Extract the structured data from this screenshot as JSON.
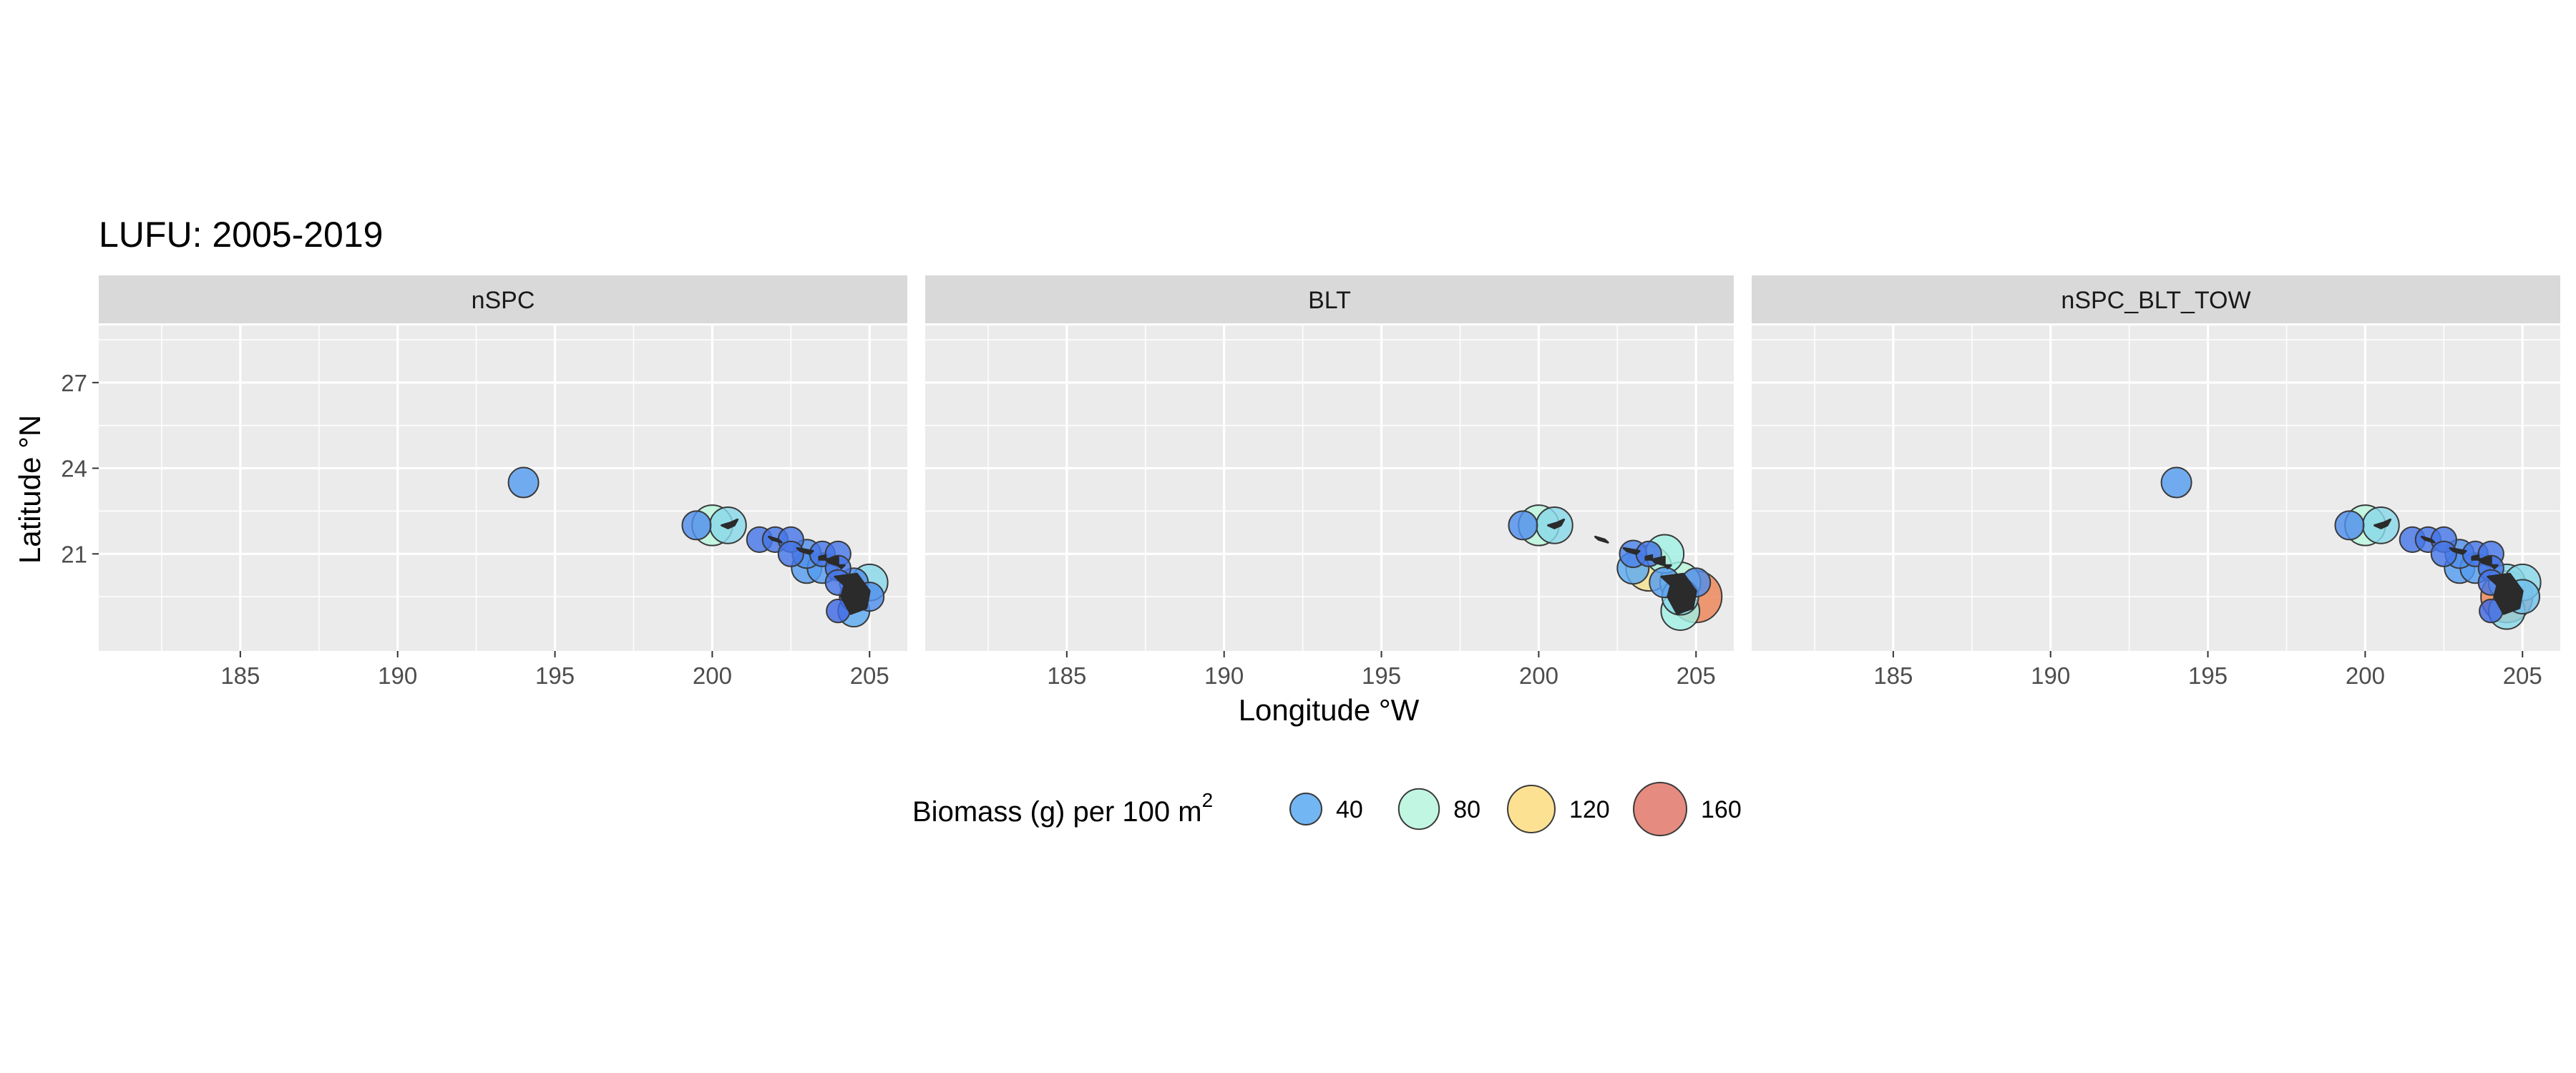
{
  "chart_data": {
    "type": "scatter",
    "title": "LUFU: 2005-2019",
    "xlabel": "Longitude °W",
    "ylabel": "Latitude °N",
    "xlim": [
      180.5,
      206.2
    ],
    "ylim": [
      17.6,
      29.0
    ],
    "x_ticks": [
      185,
      190,
      195,
      200,
      205
    ],
    "x_tick_labels": [
      "185",
      "190",
      "195",
      "200",
      "205"
    ],
    "y_ticks": [
      21,
      24,
      27
    ],
    "y_tick_labels": [
      "21",
      "24",
      "27"
    ],
    "grid": true,
    "legend_position": "bottom",
    "legend": {
      "title_text": "Biomass (g) per 100 m",
      "title_superscript": "2",
      "entries": [
        {
          "label": "40",
          "value": 40,
          "color": "#5aa9f2"
        },
        {
          "label": "80",
          "value": 80,
          "color": "#b6f5dd"
        },
        {
          "label": "120",
          "value": 120,
          "color": "#fbdc80"
        },
        {
          "label": "160",
          "value": 160,
          "color": "#e0776a"
        }
      ]
    },
    "panels": [
      {
        "name": "nSPC",
        "points": [
          {
            "x": 194.0,
            "y": 23.5,
            "biomass": 35
          },
          {
            "x": 199.5,
            "y": 22.0,
            "biomass": 30
          },
          {
            "x": 200.0,
            "y": 22.0,
            "biomass": 80
          },
          {
            "x": 200.5,
            "y": 22.0,
            "biomass": 60
          },
          {
            "x": 201.5,
            "y": 21.5,
            "biomass": 20
          },
          {
            "x": 202.0,
            "y": 21.5,
            "biomass": 20
          },
          {
            "x": 202.5,
            "y": 21.5,
            "biomass": 20
          },
          {
            "x": 202.5,
            "y": 21.0,
            "biomass": 20
          },
          {
            "x": 203.0,
            "y": 21.0,
            "biomass": 30
          },
          {
            "x": 203.5,
            "y": 21.0,
            "biomass": 20
          },
          {
            "x": 204.0,
            "y": 21.0,
            "biomass": 20
          },
          {
            "x": 203.0,
            "y": 20.5,
            "biomass": 35
          },
          {
            "x": 203.5,
            "y": 20.5,
            "biomass": 35
          },
          {
            "x": 204.0,
            "y": 20.5,
            "biomass": 20
          },
          {
            "x": 204.0,
            "y": 20.0,
            "biomass": 20
          },
          {
            "x": 204.5,
            "y": 20.0,
            "biomass": 30
          },
          {
            "x": 205.0,
            "y": 20.0,
            "biomass": 60
          },
          {
            "x": 204.5,
            "y": 19.5,
            "biomass": 30
          },
          {
            "x": 205.0,
            "y": 19.5,
            "biomass": 30
          },
          {
            "x": 204.5,
            "y": 19.0,
            "biomass": 40
          },
          {
            "x": 204.0,
            "y": 19.0,
            "biomass": 15
          }
        ]
      },
      {
        "name": "BLT",
        "points": [
          {
            "x": 199.5,
            "y": 22.0,
            "biomass": 30
          },
          {
            "x": 200.0,
            "y": 22.0,
            "biomass": 80
          },
          {
            "x": 200.5,
            "y": 22.0,
            "biomass": 60
          },
          {
            "x": 203.0,
            "y": 21.0,
            "biomass": 25
          },
          {
            "x": 203.5,
            "y": 21.0,
            "biomass": 20
          },
          {
            "x": 204.0,
            "y": 21.0,
            "biomass": 70
          },
          {
            "x": 203.0,
            "y": 20.5,
            "biomass": 40
          },
          {
            "x": 203.5,
            "y": 20.5,
            "biomass": 110
          },
          {
            "x": 204.0,
            "y": 20.0,
            "biomass": 35
          },
          {
            "x": 204.5,
            "y": 20.0,
            "biomass": 80
          },
          {
            "x": 205.0,
            "y": 20.0,
            "biomass": 30
          },
          {
            "x": 204.5,
            "y": 19.5,
            "biomass": 60
          },
          {
            "x": 205.0,
            "y": 19.5,
            "biomass": 150
          },
          {
            "x": 204.5,
            "y": 19.0,
            "biomass": 70
          }
        ]
      },
      {
        "name": "nSPC_BLT_TOW",
        "points": [
          {
            "x": 194.0,
            "y": 23.5,
            "biomass": 35
          },
          {
            "x": 199.5,
            "y": 22.0,
            "biomass": 30
          },
          {
            "x": 200.0,
            "y": 22.0,
            "biomass": 80
          },
          {
            "x": 200.5,
            "y": 22.0,
            "biomass": 60
          },
          {
            "x": 201.5,
            "y": 21.5,
            "biomass": 20
          },
          {
            "x": 202.0,
            "y": 21.5,
            "biomass": 20
          },
          {
            "x": 202.5,
            "y": 21.5,
            "biomass": 20
          },
          {
            "x": 202.5,
            "y": 21.0,
            "biomass": 20
          },
          {
            "x": 203.0,
            "y": 21.0,
            "biomass": 30
          },
          {
            "x": 203.5,
            "y": 21.0,
            "biomass": 20
          },
          {
            "x": 204.0,
            "y": 21.0,
            "biomass": 20
          },
          {
            "x": 203.0,
            "y": 20.5,
            "biomass": 35
          },
          {
            "x": 203.5,
            "y": 20.5,
            "biomass": 35
          },
          {
            "x": 204.0,
            "y": 20.5,
            "biomass": 20
          },
          {
            "x": 204.0,
            "y": 20.0,
            "biomass": 20
          },
          {
            "x": 204.5,
            "y": 20.0,
            "biomass": 60
          },
          {
            "x": 205.0,
            "y": 20.0,
            "biomass": 60
          },
          {
            "x": 204.5,
            "y": 19.5,
            "biomass": 150
          },
          {
            "x": 205.0,
            "y": 19.5,
            "biomass": 50
          },
          {
            "x": 204.5,
            "y": 19.0,
            "biomass": 60
          },
          {
            "x": 204.0,
            "y": 19.0,
            "biomass": 15
          }
        ]
      }
    ],
    "islands": [
      [
        [
          200.3,
          22.0
        ],
        [
          200.6,
          22.1
        ],
        [
          200.8,
          22.2
        ],
        [
          200.7,
          22.0
        ],
        [
          200.5,
          21.9
        ]
      ],
      [
        [
          201.8,
          21.6
        ],
        [
          202.1,
          21.5
        ],
        [
          202.2,
          21.4
        ],
        [
          201.9,
          21.5
        ]
      ],
      [
        [
          202.7,
          21.2
        ],
        [
          203.2,
          21.1
        ],
        [
          203.1,
          21.0
        ],
        [
          202.8,
          21.1
        ]
      ],
      [
        [
          203.4,
          20.9
        ],
        [
          203.6,
          20.95
        ],
        [
          203.6,
          20.8
        ],
        [
          203.4,
          20.8
        ]
      ],
      [
        [
          203.6,
          20.8
        ],
        [
          204.0,
          20.9
        ],
        [
          204.0,
          20.6
        ],
        [
          203.7,
          20.7
        ]
      ],
      [
        [
          204.0,
          20.6
        ],
        [
          204.2,
          20.6
        ],
        [
          204.1,
          20.5
        ]
      ],
      [
        [
          203.9,
          20.2
        ],
        [
          204.6,
          20.3
        ],
        [
          205.0,
          19.7
        ],
        [
          204.9,
          19.1
        ],
        [
          204.4,
          18.9
        ],
        [
          204.1,
          19.5
        ],
        [
          204.2,
          19.9
        ]
      ]
    ]
  }
}
